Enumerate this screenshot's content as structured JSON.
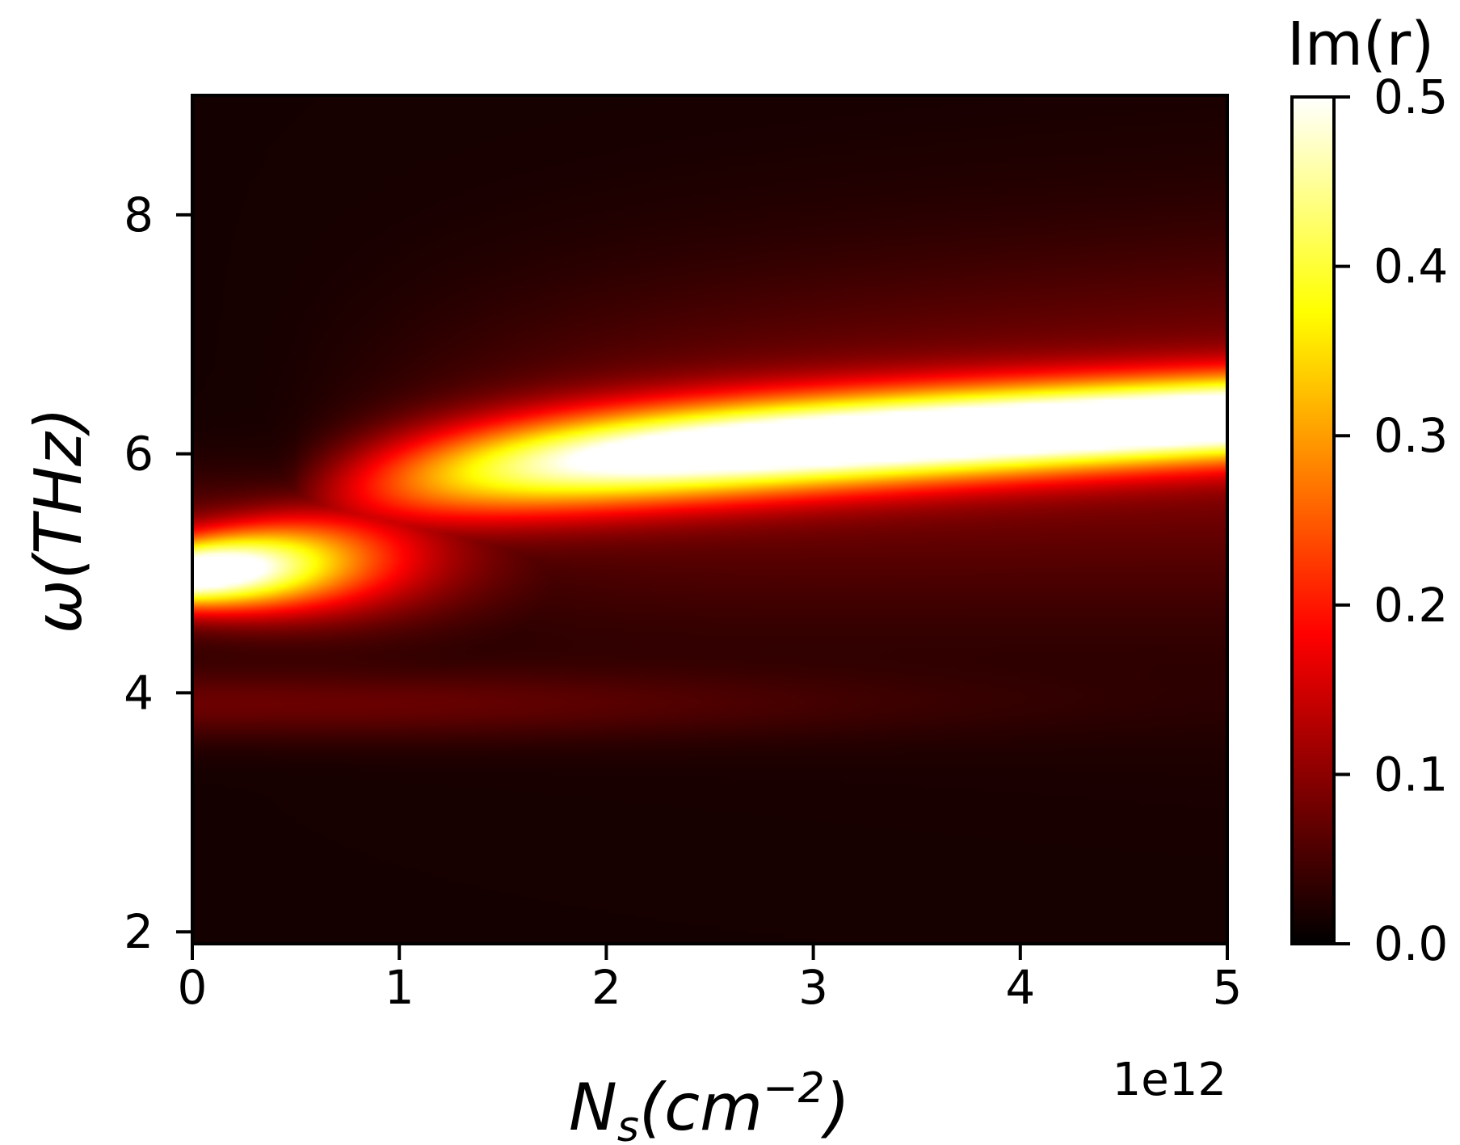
{
  "chart_data": {
    "type": "heatmap",
    "title": "",
    "xlabel_base": "N",
    "xlabel_sub": "s",
    "xlabel_rest": "(cm",
    "xlabel_sup": "−2",
    "xlabel_close": ")",
    "ylabel": "ω(THz)",
    "x_offset_label": "1e12",
    "xlim": [
      0,
      5
    ],
    "ylim": [
      1.9,
      9.0
    ],
    "xticks": [
      0,
      1,
      2,
      3,
      4,
      5
    ],
    "xtick_labels": [
      "0",
      "1",
      "2",
      "3",
      "4",
      "5"
    ],
    "yticks": [
      2,
      4,
      6,
      8
    ],
    "ytick_labels": [
      "2",
      "4",
      "6",
      "8"
    ],
    "colorbar": {
      "title": "Im(r)",
      "range": [
        0.0,
        0.5
      ],
      "ticks": [
        0.0,
        0.1,
        0.2,
        0.3,
        0.4,
        0.5
      ],
      "tick_labels": [
        "0.0",
        "0.1",
        "0.2",
        "0.3",
        "0.4",
        "0.5"
      ],
      "colormap": "hot"
    },
    "features": [
      {
        "name": "low-density resonance",
        "x": 0.0,
        "y": 5.0,
        "peak_value": 0.5,
        "x_extent": 1.2
      },
      {
        "name": "high-density band",
        "x_range": [
          0.5,
          5.0
        ],
        "y_start": 5.5,
        "y_end": 6.3,
        "peak_value": 0.5
      },
      {
        "name": "weak low band",
        "x_range": [
          0.0,
          3.0
        ],
        "y": 3.9,
        "peak_value": 0.06
      }
    ]
  }
}
